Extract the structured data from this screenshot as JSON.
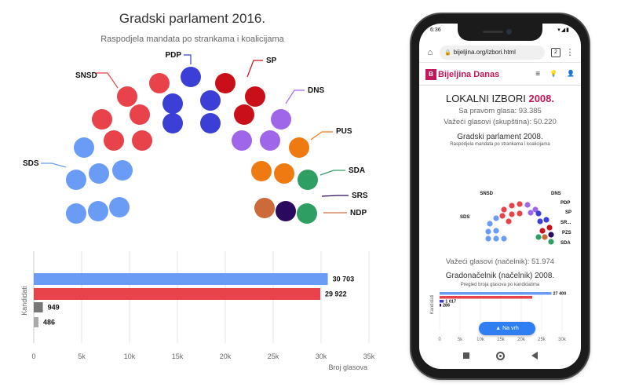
{
  "left_seats": {
    "title": "Gradski parlament 2016.",
    "subtitle": "Raspodjela mandata po strankama i koalicijama",
    "parties": [
      {
        "name": "SNSD",
        "color": "#e8434a"
      },
      {
        "name": "PDP",
        "color": "#3b3fd6"
      },
      {
        "name": "SP",
        "color": "#c80f1a"
      },
      {
        "name": "DNS",
        "color": "#a066ea"
      },
      {
        "name": "PUS",
        "color": "#f07a12"
      },
      {
        "name": "SDA",
        "color": "#2f9e63"
      },
      {
        "name": "SRS",
        "color": "#2a0a5e"
      },
      {
        "name": "NDP",
        "color": "#cc6a3a"
      },
      {
        "name": "SDS",
        "color": "#6a9cf5"
      }
    ]
  },
  "left_bars": {
    "y_axis_title": "Kandidati",
    "x_axis_title": "Broj glasova",
    "ticks": [
      "0",
      "5k",
      "10k",
      "15k",
      "20k",
      "25k",
      "30k",
      "35k"
    ],
    "tick_values": [
      0,
      5000,
      10000,
      15000,
      20000,
      25000,
      30000,
      35000
    ],
    "bars": [
      {
        "value": 30703,
        "label": "30 703",
        "color": "#6a9cf5"
      },
      {
        "value": 29922,
        "label": "29 922",
        "color": "#e8434a"
      },
      {
        "value": 949,
        "label": "949",
        "color": "#777777"
      },
      {
        "value": 486,
        "label": "486",
        "color": "#aaaaaa"
      }
    ]
  },
  "phone": {
    "status_time": "6:36",
    "status_icons": "▾◢▮",
    "url": "bijeljina.org/izbori.html",
    "tab_count": "2",
    "logo_mark": "B",
    "logo_text": "Bijeljina Danas",
    "header_icons": {
      "menu": "≡",
      "bulb": "💡",
      "user": "👤"
    },
    "main_title_prefix": "LOKALNI IZBORI",
    "main_title_year": "2008.",
    "voters": "Sa pravom glasa: 93.385",
    "valid_assembly": "Važeći glasovi (skupština): 50.220",
    "seat_title": "Gradski parlament 2008.",
    "seat_subtitle": "Raspodjela mandata po strankama i koalicijama",
    "mini_parties": [
      {
        "name": "SNSD",
        "color": "#e8434a"
      },
      {
        "name": "DNS",
        "color": "#a066ea"
      },
      {
        "name": "PDP",
        "color": "#3b3fd6"
      },
      {
        "name": "SP",
        "color": "#c80f1a"
      },
      {
        "name": "SR...",
        "color": "#2a0a5e"
      },
      {
        "name": "PZS",
        "color": "#cc6a3a"
      },
      {
        "name": "SDA",
        "color": "#2f9e63"
      },
      {
        "name": "SDS",
        "color": "#6a9cf5"
      }
    ],
    "valid_mayor": "Važeći glasovi (načelnik): 51.974",
    "mayor_title": "Gradonačelnik (načelnik) 2008.",
    "mayor_subtitle": "Pregled broja glasova po kandidatima",
    "mini_y_axis_title": "Kandidati",
    "mini_bars": [
      {
        "value": 27400,
        "label": "27 400",
        "color": "#6a9cf5"
      },
      {
        "value": 22700,
        "label": "",
        "color": "#e8434a"
      },
      {
        "value": 1017,
        "label": "1 017",
        "color": "#3b3fd6"
      },
      {
        "value": 286,
        "label": "286",
        "color": "#2a0a5e"
      }
    ],
    "mini_ticks": [
      "0",
      "5k",
      "10k",
      "15k",
      "20k",
      "25k",
      "30k"
    ],
    "mini_tick_values": [
      0,
      5000,
      10000,
      15000,
      20000,
      25000,
      30000
    ],
    "back_to_top": "▲  Na vrh"
  }
}
